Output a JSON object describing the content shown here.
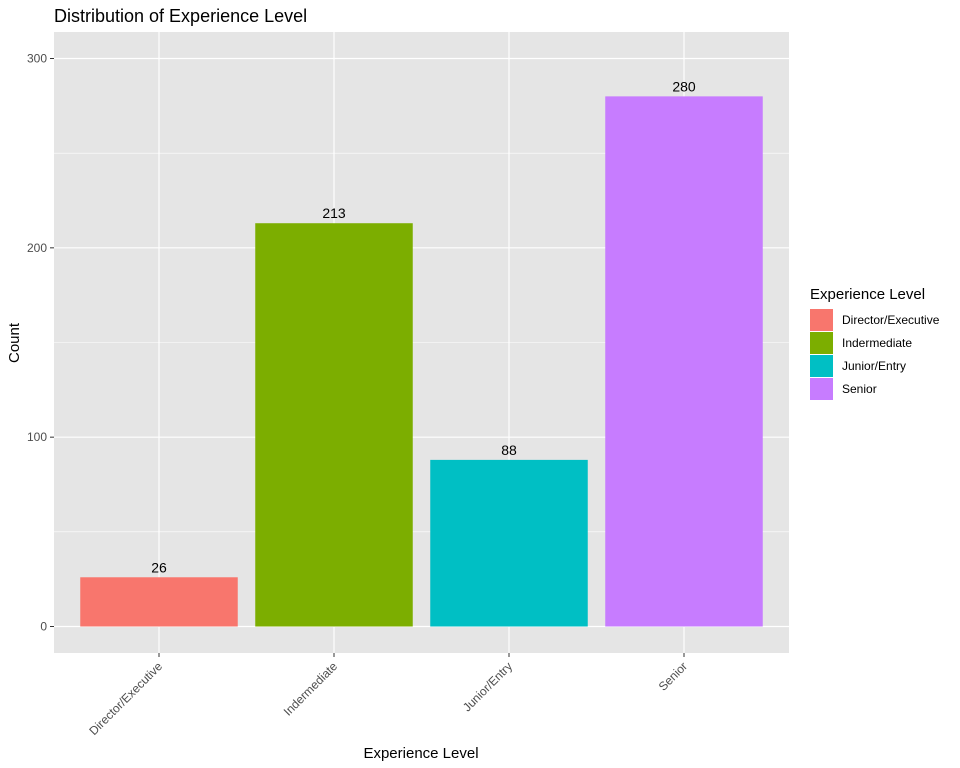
{
  "chart_data": {
    "type": "bar",
    "title": "Distribution of Experience Level",
    "xlabel": "Experience Level",
    "ylabel": "Count",
    "categories": [
      "Director/Executive",
      "Indermediate",
      "Junior/Entry",
      "Senior"
    ],
    "values": [
      26,
      213,
      88,
      280
    ],
    "data_labels": [
      "26",
      "213",
      "88",
      "280"
    ],
    "colors": [
      "#F8766D",
      "#7CAE00",
      "#00BFC4",
      "#C77CFF"
    ],
    "ylim": [
      -14,
      314
    ],
    "yticks": [
      0,
      100,
      200,
      300
    ],
    "ytick_labels": [
      "0",
      "100",
      "200",
      "300"
    ],
    "x_tick_rotation": "45 degrees",
    "grid": true,
    "legend": {
      "title": "Experience Level",
      "placement": "right",
      "entries": [
        "Director/Executive",
        "Indermediate",
        "Junior/Entry",
        "Senior"
      ]
    },
    "theme": {
      "panel_background": "#E5E5E5",
      "grid_color": "#FFFFFF",
      "axis_text_color": "#4D4D4D",
      "text_color": "#000000"
    }
  }
}
